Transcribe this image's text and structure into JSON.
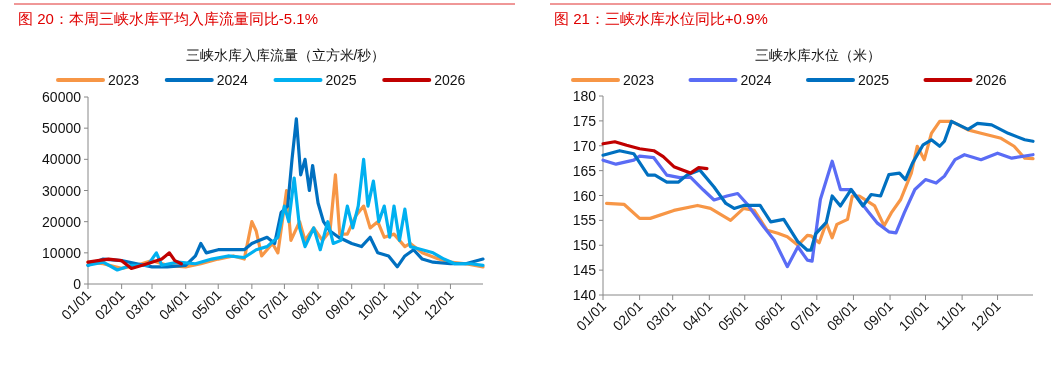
{
  "chart_data": [
    {
      "type": "line",
      "title": "图 20：本周三峡水库平均入库流量同比-5.1%",
      "subtitle": "三峡水库入库流量（立方米/秒）",
      "legend": "top",
      "grid": false,
      "xlim": [
        "--01-01",
        "--12-31"
      ],
      "xticks": [
        {
          "value": "--01-01",
          "label": "01/01"
        },
        {
          "value": "--02-01",
          "label": "02/01"
        },
        {
          "value": "--03-01",
          "label": "03/01"
        },
        {
          "value": "--04-01",
          "label": "04/01"
        },
        {
          "value": "--05-01",
          "label": "05/01"
        },
        {
          "value": "--06-01",
          "label": "06/01"
        },
        {
          "value": "--07-01",
          "label": "07/01"
        },
        {
          "value": "--08-01",
          "label": "08/01"
        },
        {
          "value": "--09-01",
          "label": "09/01"
        },
        {
          "value": "--10-01",
          "label": "10/01"
        },
        {
          "value": "--11-01",
          "label": "11/01"
        },
        {
          "value": "--12-01",
          "label": "12/01"
        }
      ],
      "ylim": [
        0,
        60000
      ],
      "yticks": [
        0,
        10000,
        20000,
        30000,
        40000,
        50000,
        60000
      ],
      "series": [
        {
          "name": "2023",
          "color": "#f79646",
          "x": [
            "--01-01",
            "--01-15",
            "--02-01",
            "--02-15",
            "--03-01",
            "--03-15",
            "--04-01",
            "--04-15",
            "--05-01",
            "--05-15",
            "--05-25",
            "--06-01",
            "--06-05",
            "--06-10",
            "--06-20",
            "--06-25",
            "--07-03",
            "--07-07",
            "--07-15",
            "--07-20",
            "--07-28",
            "--08-05",
            "--08-12",
            "--08-17",
            "--08-21",
            "--08-28",
            "--09-05",
            "--09-12",
            "--09-18",
            "--09-25",
            "--10-01",
            "--10-10",
            "--10-20",
            "--10-25",
            "--11-05",
            "--11-20",
            "--12-01",
            "--12-15",
            "--12-31"
          ],
          "values": [
            7000,
            6500,
            5000,
            6000,
            7500,
            6000,
            5500,
            6500,
            8000,
            9000,
            8000,
            20000,
            17000,
            9000,
            13000,
            10000,
            30000,
            14000,
            20000,
            14000,
            18000,
            14000,
            17000,
            35000,
            16000,
            16000,
            22000,
            25000,
            18000,
            20000,
            15000,
            16000,
            12000,
            13000,
            10000,
            8000,
            7000,
            6500,
            5500
          ]
        },
        {
          "name": "2024",
          "color": "#0070c0",
          "x": [
            "--01-01",
            "--01-15",
            "--02-01",
            "--02-15",
            "--03-01",
            "--03-15",
            "--04-01",
            "--04-10",
            "--04-15",
            "--04-20",
            "--05-01",
            "--05-15",
            "--05-25",
            "--06-01",
            "--06-15",
            "--06-22",
            "--06-28",
            "--07-04",
            "--07-08",
            "--07-12",
            "--07-16",
            "--07-20",
            "--07-24",
            "--07-27",
            "--08-01",
            "--08-06",
            "--08-12",
            "--08-20",
            "--09-01",
            "--09-10",
            "--09-18",
            "--09-25",
            "--10-05",
            "--10-13",
            "--10-20",
            "--10-28",
            "--11-05",
            "--11-15",
            "--12-01",
            "--12-15",
            "--12-31"
          ],
          "values": [
            6000,
            8000,
            7500,
            6500,
            5500,
            5500,
            6000,
            9000,
            13000,
            10000,
            11000,
            11000,
            11000,
            13000,
            15000,
            13000,
            23000,
            25000,
            40000,
            53000,
            35000,
            40000,
            30000,
            38000,
            26000,
            20000,
            17000,
            15000,
            13000,
            12000,
            15000,
            10000,
            9000,
            5500,
            9000,
            11000,
            8000,
            7000,
            6500,
            6500,
            8000
          ]
        },
        {
          "name": "2025",
          "color": "#00b0f0",
          "x": [
            "--01-01",
            "--01-15",
            "--01-28",
            "--02-10",
            "--02-25",
            "--03-05",
            "--03-10",
            "--03-25",
            "--04-10",
            "--04-25",
            "--05-10",
            "--05-25",
            "--06-05",
            "--06-15",
            "--06-25",
            "--07-01",
            "--07-05",
            "--07-10",
            "--07-15",
            "--07-20",
            "--07-28",
            "--08-03",
            "--08-10",
            "--08-15",
            "--08-22",
            "--08-28",
            "--09-02",
            "--09-07",
            "--09-12",
            "--09-16",
            "--09-21",
            "--09-26",
            "--10-01",
            "--10-06",
            "--10-10",
            "--10-15",
            "--10-20",
            "--10-25",
            "--11-05",
            "--11-15",
            "--11-25",
            "--12-05",
            "--12-20",
            "--12-31"
          ],
          "values": [
            6000,
            7000,
            4500,
            6000,
            6000,
            10000,
            6000,
            7000,
            6500,
            8000,
            9000,
            8500,
            11000,
            12000,
            15000,
            25000,
            20000,
            34000,
            18000,
            12000,
            18000,
            11000,
            20000,
            13000,
            14000,
            25000,
            18000,
            25000,
            40000,
            25000,
            33000,
            20000,
            25000,
            15000,
            25000,
            14000,
            24000,
            12000,
            11000,
            10000,
            8000,
            6500,
            6500,
            6000
          ]
        },
        {
          "name": "2026",
          "color": "#c00000",
          "x": [
            "--01-01",
            "--01-10",
            "--01-20",
            "--02-01",
            "--02-10",
            "--02-20",
            "--03-01",
            "--03-10",
            "--03-17",
            "--03-22",
            "--03-28"
          ],
          "values": [
            7000,
            7500,
            8000,
            7500,
            5000,
            6000,
            7000,
            8000,
            10000,
            7500,
            6500
          ]
        }
      ]
    },
    {
      "type": "line",
      "title": "图 21：三峡水库水位同比+0.9%",
      "subtitle": "三峡水库水位（米）",
      "legend": "top",
      "grid": false,
      "xlim": [
        "--01-01",
        "--12-31"
      ],
      "xticks": [
        {
          "value": "--01-01",
          "label": "01/01"
        },
        {
          "value": "--02-01",
          "label": "02/01"
        },
        {
          "value": "--03-01",
          "label": "03/01"
        },
        {
          "value": "--04-01",
          "label": "04/01"
        },
        {
          "value": "--05-01",
          "label": "05/01"
        },
        {
          "value": "--06-01",
          "label": "06/01"
        },
        {
          "value": "--07-01",
          "label": "07/01"
        },
        {
          "value": "--08-01",
          "label": "08/01"
        },
        {
          "value": "--09-01",
          "label": "09/01"
        },
        {
          "value": "--10-01",
          "label": "10/01"
        },
        {
          "value": "--11-01",
          "label": "11/01"
        },
        {
          "value": "--12-01",
          "label": "12/01"
        }
      ],
      "ylim": [
        140,
        180
      ],
      "yticks": [
        140,
        145,
        150,
        155,
        160,
        165,
        170,
        175,
        180
      ],
      "series": [
        {
          "name": "2023",
          "color": "#f79646",
          "x": [
            "--01-04",
            "--01-19",
            "--02-01",
            "--02-10",
            "--03-02",
            "--03-22",
            "--04-02",
            "--04-19",
            "--04-30",
            "--05-09",
            "--05-20",
            "--05-29",
            "--06-06",
            "--06-15",
            "--06-23",
            "--06-26",
            "--07-03",
            "--07-09",
            "--07-14",
            "--07-18",
            "--07-27",
            "--07-31",
            "--08-06",
            "--08-19",
            "--08-27",
            "--09-02",
            "--09-10",
            "--09-19",
            "--09-24",
            "--09-30",
            "--10-06",
            "--10-13",
            "--10-23",
            "--11-06",
            "--11-17",
            "--12-04",
            "--12-15",
            "--12-24",
            "--12-31"
          ],
          "values": [
            158.4,
            158.2,
            155.4,
            155.4,
            157,
            158,
            157.4,
            155,
            157.4,
            157,
            153,
            152.4,
            151.7,
            150,
            152,
            151.9,
            150.5,
            154.5,
            151.5,
            154.2,
            155.2,
            159.9,
            159.9,
            157.9,
            153.9,
            156.5,
            159.2,
            164.5,
            169.9,
            167.2,
            172.5,
            174.9,
            174.9,
            173.2,
            172.5,
            171.5,
            169.9,
            167.5,
            167.4
          ]
        },
        {
          "name": "2024",
          "color": "#5a6cf5",
          "x": [
            "--01-01",
            "--01-12",
            "--01-27",
            "--02-01",
            "--02-13",
            "--02-24",
            "--03-07",
            "--03-16",
            "--03-27",
            "--04-05",
            "--04-16",
            "--04-25",
            "--05-03",
            "--05-17",
            "--05-26",
            "--06-06",
            "--06-15",
            "--06-23",
            "--06-27",
            "--07-04",
            "--07-14",
            "--07-21",
            "--07-30",
            "--08-13",
            "--08-21",
            "--08-31",
            "--09-06",
            "--09-13",
            "--09-22",
            "--10-01",
            "--10-10",
            "--10-17",
            "--10-26",
            "--11-03",
            "--11-17",
            "--12-01",
            "--12-13",
            "--12-31"
          ],
          "values": [
            167.1,
            166.3,
            167.1,
            167.9,
            167.6,
            164.1,
            163.6,
            163.7,
            161.1,
            159.1,
            159.9,
            160.4,
            158.3,
            153.7,
            151,
            145.7,
            149.7,
            147,
            146.8,
            159.2,
            166.9,
            161.2,
            161.2,
            156.9,
            154.5,
            152.7,
            152.5,
            156.5,
            161.2,
            163.2,
            162.5,
            163.9,
            167.2,
            168.2,
            167.2,
            168.5,
            167.5,
            168.2
          ]
        },
        {
          "name": "2025",
          "color": "#0070c0",
          "x": [
            "--01-01",
            "--01-15",
            "--01-27",
            "--02-08",
            "--02-14",
            "--02-24",
            "--03-06",
            "--03-13",
            "--03-24",
            "--04-05",
            "--04-15",
            "--04-22",
            "--04-30",
            "--05-14",
            "--05-23",
            "--06-03",
            "--06-15",
            "--06-23",
            "--06-26",
            "--06-30",
            "--07-09",
            "--07-14",
            "--07-21",
            "--07-30",
            "--08-09",
            "--08-16",
            "--08-24",
            "--08-31",
            "--09-09",
            "--09-14",
            "--09-20",
            "--09-29",
            "--10-06",
            "--10-13",
            "--10-17",
            "--10-23",
            "--11-06",
            "--11-14",
            "--11-26",
            "--12-10",
            "--12-24",
            "--12-31"
          ],
          "values": [
            168.1,
            169,
            168.4,
            164.1,
            164.1,
            162.7,
            162.7,
            164.1,
            165.1,
            161.7,
            158.4,
            157.4,
            158,
            158,
            154.7,
            155.2,
            150.7,
            149,
            149,
            152.3,
            154.6,
            159.9,
            157.9,
            161.2,
            157.9,
            160.2,
            159.9,
            164.2,
            164.5,
            163.2,
            166.5,
            170.2,
            171.2,
            169.9,
            170.9,
            174.9,
            173.3,
            174.5,
            174.2,
            172.5,
            171.2,
            170.9
          ]
        },
        {
          "name": "2026",
          "color": "#c00000",
          "x": [
            "--01-01",
            "--01-11",
            "--01-21",
            "--02-01",
            "--02-13",
            "--02-21",
            "--03-02",
            "--03-16",
            "--03-23",
            "--03-30"
          ],
          "values": [
            170.4,
            170.8,
            170.1,
            169.4,
            169,
            167.8,
            165.8,
            164.5,
            165.6,
            165.4
          ]
        }
      ]
    }
  ]
}
